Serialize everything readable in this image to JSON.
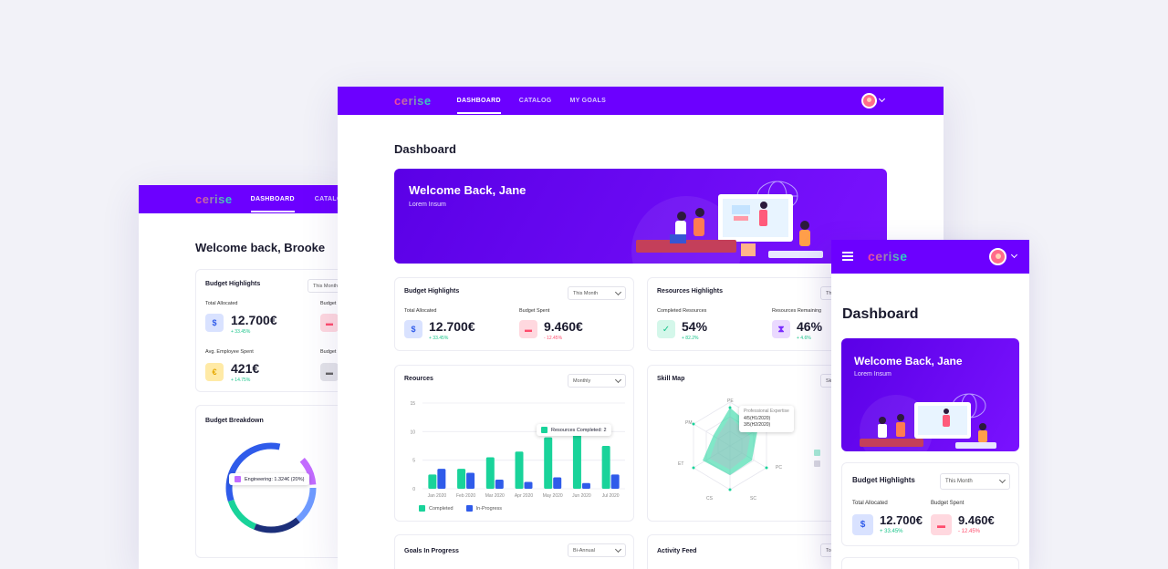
{
  "brand": "cerise",
  "left": {
    "nav": {
      "dashboard": "DASHBOARD",
      "catalog": "CATALOG"
    },
    "welcome": "Welcome back, Brooke",
    "budget": {
      "title": "Budget Highlights",
      "period": "This Month",
      "total_label": "Total Allocated",
      "total_value": "12.700€",
      "total_change": "+ 33.45%",
      "budget_label": "Budget",
      "avg_label": "Avg. Employee Spent",
      "avg_value": "421€",
      "avg_change": "+ 14.75%",
      "budget_label2": "Budget"
    },
    "breakdown": {
      "title": "Budget Breakdown",
      "tooltip": "Engineering: 1.324€ (20%)"
    }
  },
  "center": {
    "nav": {
      "dashboard": "DASHBOARD",
      "catalog": "CATALOG",
      "goals": "MY GOALS"
    },
    "page_title": "Dashboard",
    "banner": {
      "title": "Welcome Back, Jane",
      "subtitle": "Lorem Insum"
    },
    "budget": {
      "title": "Budget Highlights",
      "period": "This Month",
      "total_label": "Total Allocated",
      "total_value": "12.700€",
      "total_change": "+ 33.45%",
      "spent_label": "Budget Spent",
      "spent_value": "9.460€",
      "spent_change": "- 12.45%"
    },
    "resources_hl": {
      "title": "Resources Highlights",
      "period": "Th",
      "completed_label": "Completed Resources",
      "completed_value": "54%",
      "completed_change": "+ 82.2%",
      "remaining_label": "Resources Remaining",
      "remaining_value": "46%",
      "remaining_change": "+ 4.6%"
    },
    "resources": {
      "title": "Reources",
      "period": "Monthly",
      "tooltip": "Resources Completed: 2",
      "legend_completed": "Completed",
      "legend_progress": "In-Progress"
    },
    "skill": {
      "title": "Skill Map",
      "period": "Sk",
      "tooltip_l1": "Professional Expertise",
      "tooltip_l2": "4/5(H1/2020)",
      "tooltip_l3": "3/5(H2/2020)",
      "labels": [
        "PE",
        "PC",
        "SC",
        "CS",
        "ET",
        "PM"
      ]
    },
    "goals": {
      "title": "Goals In Progress",
      "period": "Bi-Annual"
    },
    "activity": {
      "title": "Activity Feed",
      "period": "To"
    }
  },
  "right": {
    "page_title": "Dashboard",
    "banner": {
      "title": "Welcome Back, Jane",
      "subtitle": "Lorem Insum"
    },
    "budget": {
      "title": "Budget Highlights",
      "period": "This Month",
      "total_label": "Total Allocated",
      "total_value": "12.700€",
      "total_change": "+ 33.45%",
      "spent_label": "Budget Spent",
      "spent_value": "9.460€",
      "spent_change": "- 12.45%"
    }
  },
  "chart_data": [
    {
      "type": "bar",
      "title": "Reources",
      "categories": [
        "Jan 2020",
        "Feb 2020",
        "Mar 2020",
        "Apr 2020",
        "May 2020",
        "Jun 2020",
        "Jul 2020"
      ],
      "series": [
        {
          "name": "Completed",
          "values": [
            2.5,
            3.5,
            5.5,
            6.5,
            9,
            11,
            7.5
          ],
          "color": "#19d39a"
        },
        {
          "name": "In-Progress",
          "values": [
            3.5,
            2.8,
            1.6,
            1.2,
            2,
            1,
            2.5
          ],
          "color": "#2f5bea"
        }
      ],
      "ylim": [
        0,
        15
      ],
      "yticks": [
        0,
        5,
        10,
        15
      ],
      "grid": true
    }
  ]
}
